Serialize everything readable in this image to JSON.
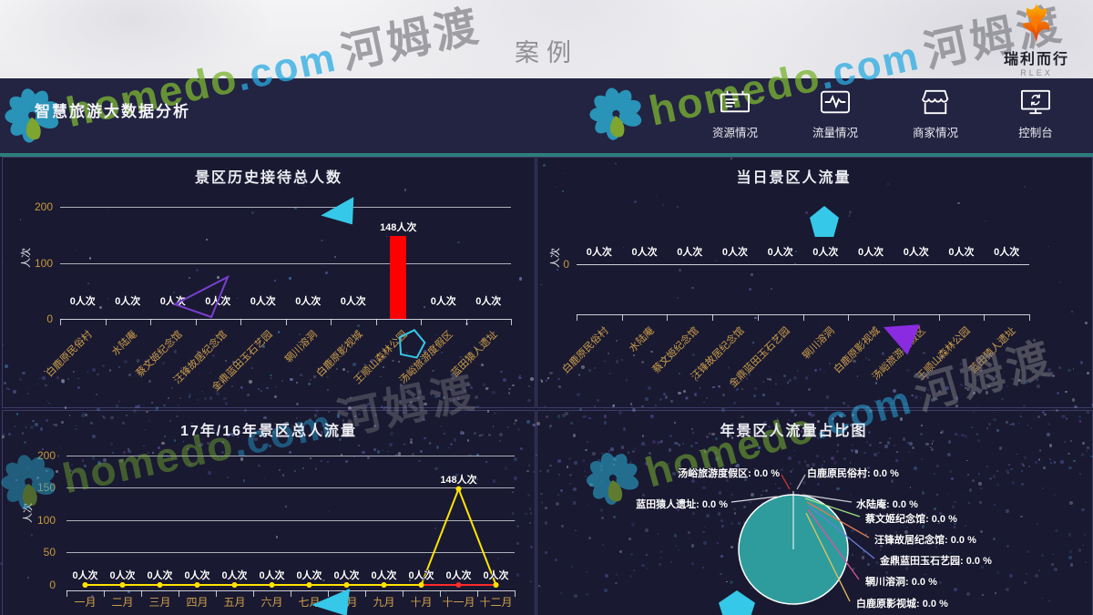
{
  "page": {
    "title": "案例"
  },
  "brand": {
    "logo_text": "瑞利而行",
    "logo_sub": "RLEX",
    "watermark": {
      "latin": "homedo",
      "com": ".com",
      "cn": "河姆渡"
    },
    "flower_icon": "homedo-flower-icon",
    "phoenix_icon": "phoenix-icon"
  },
  "header": {
    "title": "智慧旅游大数据分析",
    "nav": [
      {
        "label": "资源情况",
        "icon": "billboard-icon"
      },
      {
        "label": "流量情况",
        "icon": "pulse-icon"
      },
      {
        "label": "商家情况",
        "icon": "storefront-icon"
      },
      {
        "label": "控制台",
        "icon": "console-icon"
      }
    ]
  },
  "colors": {
    "bar_red": "#ff0000",
    "line_yellow": "#ffe400",
    "line_red": "#ff2a2a",
    "pie_teal": "#2e9c9c",
    "axis_gold": "#c89a3e",
    "decor_cyan": "#35c8e8",
    "decor_purple": "#8a2be2",
    "header_bg": "#232342",
    "dash_bg": "#191931",
    "divider_teal": "#2e7d7d"
  },
  "chart_data": [
    {
      "id": "history",
      "type": "bar",
      "title": "景区历史接待总人数",
      "ylabel": "人次",
      "unit": "人次",
      "yticks": [
        0,
        100,
        200
      ],
      "ylim": [
        0,
        200
      ],
      "categories": [
        "白鹿原民俗村",
        "水陆庵",
        "蔡文姬纪念馆",
        "汪锋故居纪念馆",
        "金鼎蓝田玉石艺园",
        "辋川溶洞",
        "白鹿原影视城",
        "王顺山森林公园",
        "汤峪旅游度假区",
        "蓝田猿人遗址"
      ],
      "values": [
        0,
        0,
        0,
        0,
        0,
        0,
        0,
        148,
        0,
        0
      ],
      "bar_color": "#ff0000",
      "grid": true,
      "legend_position": "none"
    },
    {
      "id": "today",
      "type": "bar",
      "title": "当日景区人流量",
      "ylabel": "人次",
      "unit": "人次",
      "yticks": [
        0
      ],
      "ylim": [
        0,
        0
      ],
      "categories": [
        "白鹿原民俗村",
        "水陆庵",
        "蔡文姬纪念馆",
        "汪锋故居纪念馆",
        "金鼎蓝田玉石艺园",
        "辋川溶洞",
        "白鹿原影视城",
        "汤峪旅游度假区",
        "王顺山森林公园",
        "蓝田猿人遗址"
      ],
      "values": [
        0,
        0,
        0,
        0,
        0,
        0,
        0,
        0,
        0,
        0
      ],
      "bar_color": "#ff0000",
      "grid": false,
      "legend_position": "none"
    },
    {
      "id": "trend",
      "type": "line",
      "title": "17年/16年景区总人流量",
      "ylabel": "人次",
      "unit": "人次",
      "yticks": [
        0,
        50,
        100,
        150,
        200
      ],
      "ylim": [
        0,
        200
      ],
      "categories": [
        "一月",
        "二月",
        "三月",
        "四月",
        "五月",
        "六月",
        "七月",
        "八月",
        "九月",
        "十月",
        "十一月",
        "十二月"
      ],
      "series": [
        {
          "name": "16年",
          "color": "#ff2a2a",
          "values": [
            0,
            0,
            0,
            0,
            0,
            0,
            0,
            0,
            0,
            0,
            0,
            0
          ]
        },
        {
          "name": "17年",
          "color": "#ffe400",
          "values": [
            0,
            0,
            0,
            0,
            0,
            0,
            0,
            0,
            0,
            0,
            148,
            0
          ]
        }
      ],
      "grid": true,
      "legend_position": "none"
    },
    {
      "id": "share",
      "type": "pie",
      "title": "年景区人流量占比图",
      "pie_color": "#2e9c9c",
      "percent_suffix": " %",
      "slices": [
        {
          "name": "汤峪旅游度假区",
          "value": "0.0"
        },
        {
          "name": "白鹿原民俗村",
          "value": "0.0"
        },
        {
          "name": "蓝田猿人遗址",
          "value": "0.0"
        },
        {
          "name": "水陆庵",
          "value": "0.0"
        },
        {
          "name": "蔡文姬纪念馆",
          "value": "0.0"
        },
        {
          "name": "汪锋故居纪念馆",
          "value": "0.0"
        },
        {
          "name": "金鼎蓝田玉石艺园",
          "value": "0.0"
        },
        {
          "name": "辋川溶洞",
          "value": "0.0"
        },
        {
          "name": "白鹿原影视城",
          "value": "0.0"
        }
      ]
    }
  ]
}
